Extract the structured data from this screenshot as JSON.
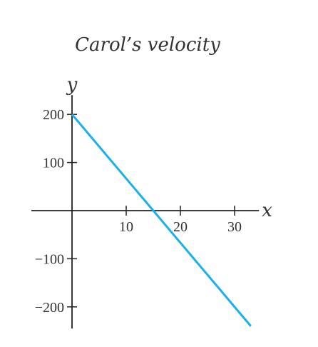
{
  "chart_data": {
    "type": "line",
    "title": "Carol’s velocity",
    "xlabel": "x",
    "ylabel": "y",
    "xlim": [
      -7.5,
      34.5
    ],
    "ylim": [
      -245,
      240
    ],
    "x_ticks": [
      10,
      20,
      30
    ],
    "x_tick_labels": [
      "10",
      "20",
      "30"
    ],
    "y_ticks": [
      200,
      100,
      -100,
      -200
    ],
    "y_tick_labels": [
      "200",
      "100",
      "−100",
      "−200"
    ],
    "grid": false,
    "series": [
      {
        "x": [
          0,
          33
        ],
        "y": [
          200,
          -240
        ],
        "color": "#1ab0ea"
      }
    ]
  },
  "colors": {
    "line": "#1ab0ea",
    "axis": "#222222",
    "text": "#333333"
  }
}
